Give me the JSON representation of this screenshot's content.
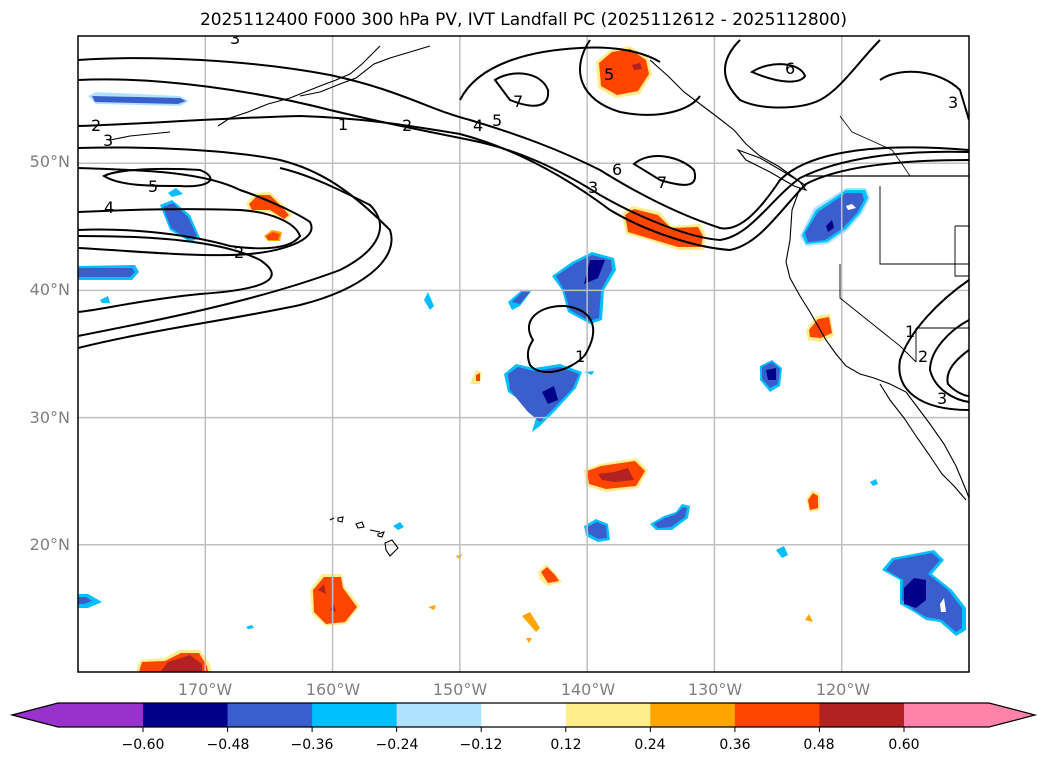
{
  "title": "2025112400 F000 300 hPa PV, IVT Landfall PC (2025112612 - 2025112800)",
  "map": {
    "projection": "PlateCarree",
    "extent": {
      "lon_min": -180,
      "lon_max": -110,
      "lat_min": 10,
      "lat_max": 60
    },
    "lat_labels": [
      "50°N",
      "40°N",
      "30°N",
      "20°N"
    ],
    "lat_values": [
      50,
      40,
      30,
      20
    ],
    "lon_labels": [
      "170°W",
      "160°W",
      "150°W",
      "140°W",
      "130°W",
      "120°W"
    ],
    "lon_values": [
      -170,
      -160,
      -150,
      -140,
      -130,
      -120
    ],
    "gridline_color": "#bfbfbf",
    "label_color": "#808080",
    "contour_field": "300 hPa PV (PVU)",
    "contour_labels": [
      "1",
      "2",
      "3",
      "4",
      "5",
      "6",
      "7"
    ]
  },
  "colorbar": {
    "field": "IVT Landfall PC",
    "extend": "both",
    "tick_labels": [
      "−0.60",
      "−0.48",
      "−0.36",
      "−0.24",
      "−0.12",
      "0.12",
      "0.24",
      "0.36",
      "0.48",
      "0.60"
    ],
    "levels": [
      -0.6,
      -0.48,
      -0.36,
      -0.24,
      -0.12,
      0.12,
      0.24,
      0.36,
      0.48,
      0.6
    ],
    "colors": [
      "#9932cc",
      "#00008b",
      "#3a5fcd",
      "#00bfff",
      "#b0e2ff",
      "#ffffff",
      "#ffec8b",
      "#ffa500",
      "#ff4500",
      "#b22222",
      "#ff82ab"
    ]
  }
}
